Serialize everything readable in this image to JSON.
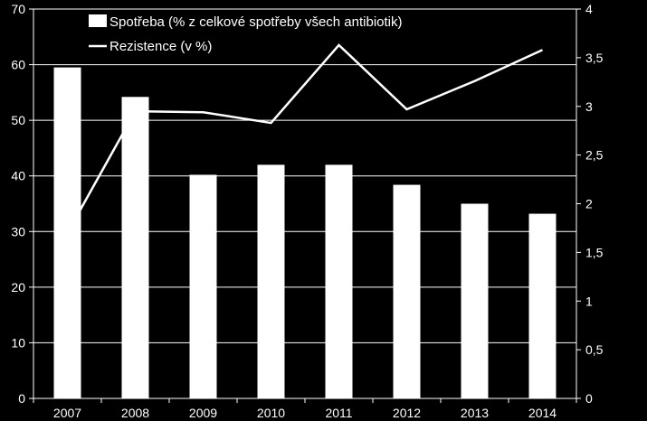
{
  "chart_data": {
    "type": "bar",
    "categories": [
      "2007",
      "2008",
      "2009",
      "2010",
      "2011",
      "2012",
      "2013",
      "2014"
    ],
    "series": [
      {
        "name": "Spotřeba (% z celkové spotřeby všech antibiotik)",
        "type": "bar",
        "axis": "left",
        "values": [
          59.5,
          54.2,
          40.2,
          42.0,
          42.0,
          38.4,
          35.0,
          33.2
        ]
      },
      {
        "name": "Rezistence (v %)",
        "type": "line",
        "axis": "right",
        "values": [
          1.7,
          2.95,
          2.94,
          2.83,
          3.63,
          2.97,
          3.26,
          3.58
        ]
      }
    ],
    "y_left": {
      "min": 0,
      "max": 70,
      "ticks": [
        "0",
        "10",
        "20",
        "30",
        "40",
        "50",
        "60",
        "70"
      ]
    },
    "y_right": {
      "min": 0,
      "max": 4,
      "ticks": [
        "0",
        "0,5",
        "1",
        "1,5",
        "2",
        "2,5",
        "3",
        "3,5",
        "4"
      ]
    },
    "grid": true,
    "legend_position": "top-left",
    "colors": {
      "background": "#000000",
      "bars": "#ffffff",
      "line": "#ffffff",
      "axes": "#ffffff"
    }
  }
}
